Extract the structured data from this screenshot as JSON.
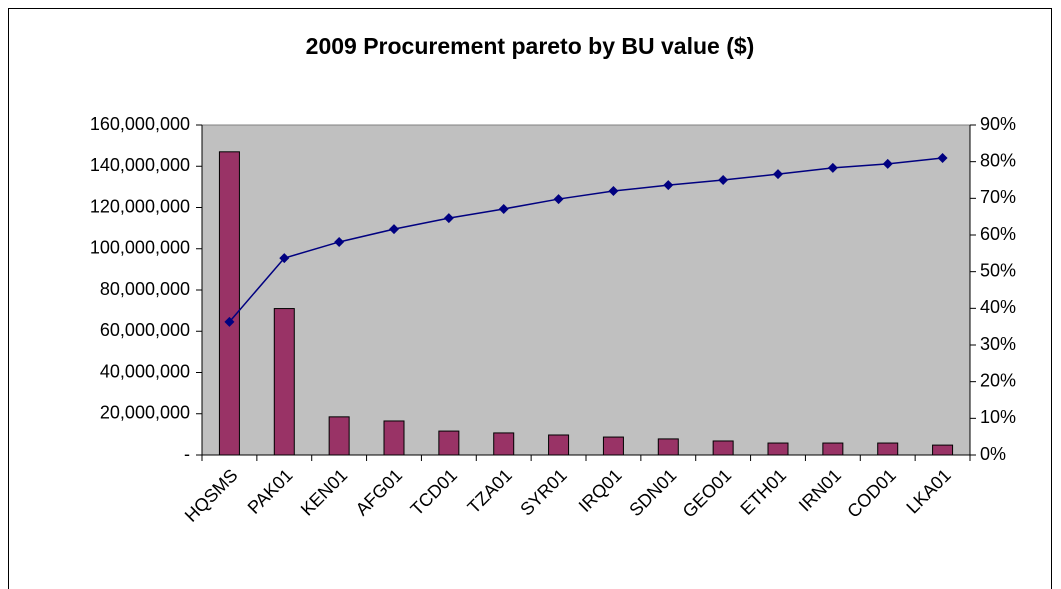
{
  "chart_data": {
    "type": "bar",
    "title": "2009 Procurement pareto by BU value ($)",
    "categories": [
      "HQSMS",
      "PAK01",
      "KEN01",
      "AFG01",
      "TCD01",
      "TZA01",
      "SYR01",
      "IRQ01",
      "SDN01",
      "GEO01",
      "ETH01",
      "IRN01",
      "COD01",
      "LKA01"
    ],
    "series": [
      {
        "type": "bar",
        "color": "#993366",
        "values": [
          147000000,
          71000000,
          18500000,
          16500000,
          11600000,
          10700000,
          9700000,
          8700000,
          7800000,
          6800000,
          5800000,
          5800000,
          5800000,
          4800000
        ]
      },
      {
        "type": "line",
        "axis": "y2",
        "color": "#000080",
        "values": [
          36.3,
          53.7,
          58.1,
          61.6,
          64.6,
          67.1,
          69.8,
          72.0,
          73.6,
          75.0,
          76.6,
          78.3,
          79.4,
          81.0
        ]
      }
    ],
    "ylim": [
      0,
      160000000
    ],
    "yticks": [
      {
        "value": 0,
        "label": "-"
      },
      {
        "value": 20000000,
        "label": "20,000,000"
      },
      {
        "value": 40000000,
        "label": "40,000,000"
      },
      {
        "value": 60000000,
        "label": "60,000,000"
      },
      {
        "value": 80000000,
        "label": "80,000,000"
      },
      {
        "value": 100000000,
        "label": "100,000,000"
      },
      {
        "value": 120000000,
        "label": "120,000,000"
      },
      {
        "value": 140000000,
        "label": "140,000,000"
      },
      {
        "value": 160000000,
        "label": "160,000,000"
      }
    ],
    "y2lim": [
      0,
      90
    ],
    "y2ticks": [
      {
        "value": 0,
        "label": "0%"
      },
      {
        "value": 10,
        "label": "10%"
      },
      {
        "value": 20,
        "label": "20%"
      },
      {
        "value": 30,
        "label": "30%"
      },
      {
        "value": 40,
        "label": "40%"
      },
      {
        "value": 50,
        "label": "50%"
      },
      {
        "value": 60,
        "label": "60%"
      },
      {
        "value": 70,
        "label": "70%"
      },
      {
        "value": 80,
        "label": "80%"
      },
      {
        "value": 90,
        "label": "90%"
      }
    ],
    "plot_background": "#c0c0c0",
    "grid": false
  }
}
